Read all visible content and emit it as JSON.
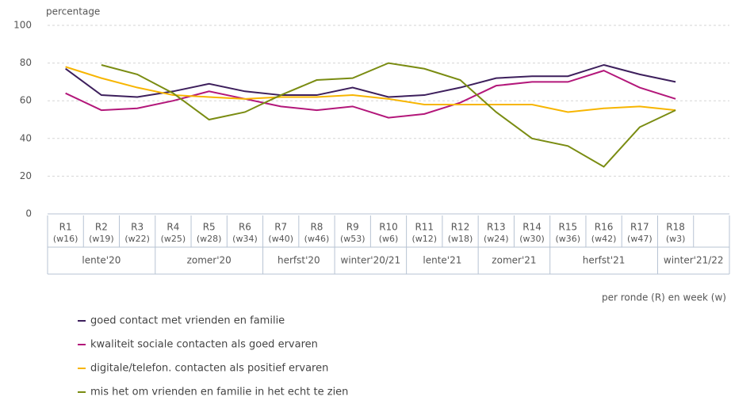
{
  "chart_data": {
    "type": "line",
    "y_label": "percentage",
    "x_label": "per ronde (R) en week (w)",
    "categories": [
      "R1",
      "R2",
      "R3",
      "R4",
      "R5",
      "R6",
      "R7",
      "R8",
      "R9",
      "R10",
      "R11",
      "R12",
      "R13",
      "R14",
      "R15",
      "R16",
      "R17",
      "R18"
    ],
    "weeks": [
      "(w16)",
      "(w19)",
      "(w22)",
      "(w25)",
      "(w28)",
      "(w34)",
      "(w40)",
      "(w46)",
      "(w53)",
      "(w6)",
      "(w12)",
      "(w18)",
      "(w24)",
      "(w30)",
      "(w36)",
      "(w42)",
      "(w47)",
      "(w3)"
    ],
    "seasons": [
      "lente'20",
      "lente'20",
      "lente'20",
      "zomer'20",
      "zomer'20",
      "zomer'20",
      "herfst'20",
      "herfst'20",
      "winter'20/21",
      "winter'20/21",
      "lente'21",
      "lente'21",
      "zomer'21",
      "zomer'21",
      "herfst'21",
      "herfst'21",
      "herfst'21",
      "winter'21/22"
    ],
    "series": [
      {
        "name": "goed contact met vrienden en familie",
        "color": "#3d1f5c",
        "values": [
          77,
          63,
          62,
          65,
          69,
          65,
          63,
          63,
          67,
          62,
          63,
          67,
          72,
          73,
          73,
          79,
          74,
          70
        ]
      },
      {
        "name": "kwaliteit sociale contacten als goed ervaren",
        "color": "#b3177a",
        "values": [
          64,
          55,
          56,
          60,
          65,
          61,
          57,
          55,
          57,
          51,
          53,
          59,
          68,
          70,
          70,
          76,
          67,
          61
        ]
      },
      {
        "name": "digitale/telefon. contacten als positief ervaren",
        "color": "#f7b500",
        "values": [
          78,
          72,
          67,
          63,
          62,
          61,
          62,
          62,
          63,
          61,
          58,
          58,
          58,
          58,
          54,
          56,
          57,
          55
        ]
      },
      {
        "name": "mis het om vrienden en familie in het echt te zien",
        "color": "#7a8c12",
        "values": [
          null,
          79,
          74,
          64,
          50,
          54,
          63,
          71,
          72,
          80,
          77,
          71,
          54,
          40,
          36,
          25,
          46,
          55
        ]
      }
    ],
    "ylim": [
      0,
      100
    ],
    "yticks": [
      0,
      20,
      40,
      60,
      80,
      100
    ],
    "grid": true
  }
}
